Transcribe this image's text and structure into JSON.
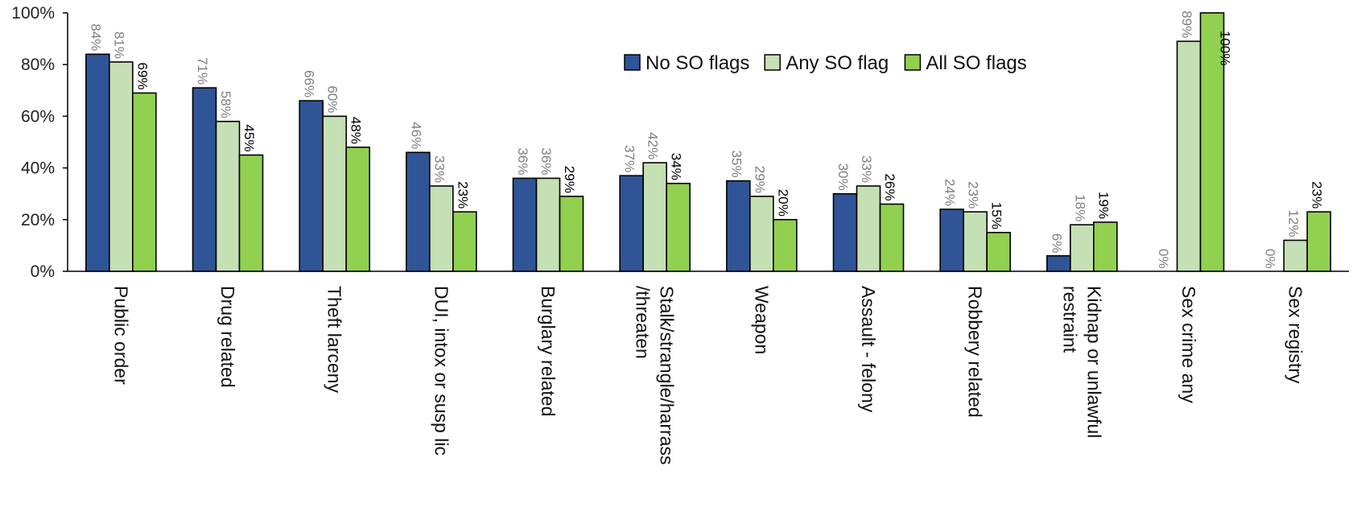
{
  "chart_data": {
    "type": "bar",
    "categories": [
      [
        "Public order"
      ],
      [
        "Drug related"
      ],
      [
        "Theft larceny"
      ],
      [
        "DUI, intox or susp lic"
      ],
      [
        "Burglary related"
      ],
      [
        "Stalk/strangle/harrass",
        "/threaten"
      ],
      [
        "Weapon"
      ],
      [
        "Assault - felony"
      ],
      [
        "Robbery related"
      ],
      [
        "Kidnap or unlawful",
        "restraint"
      ],
      [
        "Sex crime any"
      ],
      [
        "Sex registry"
      ]
    ],
    "series": [
      {
        "name": "No SO flags",
        "color": "#2F5597",
        "label_color": "#7f7f7f",
        "values": [
          84,
          71,
          66,
          46,
          36,
          37,
          35,
          30,
          24,
          6,
          0,
          0
        ],
        "labels": [
          "84%",
          "71%",
          "66%",
          "46%",
          "36%",
          "37%",
          "35%",
          "30%",
          "24%",
          "6%",
          "0%",
          "0%"
        ]
      },
      {
        "name": "Any SO flag",
        "color": "#C5E0B4",
        "label_color": "#7f7f7f",
        "values": [
          81,
          58,
          60,
          33,
          36,
          42,
          29,
          33,
          23,
          18,
          89,
          12
        ],
        "labels": [
          "81%",
          "58%",
          "60%",
          "33%",
          "36%",
          "42%",
          "29%",
          "33%",
          "23%",
          "18%",
          "89%",
          "12%"
        ]
      },
      {
        "name": "All SO flags",
        "color": "#92D050",
        "label_color": "#000000",
        "values": [
          69,
          45,
          48,
          23,
          29,
          34,
          20,
          26,
          15,
          19,
          100,
          23
        ],
        "labels": [
          "69%",
          "45%",
          "48%",
          "23%",
          "29%",
          "34%",
          "20%",
          "26%",
          "15%",
          "19%",
          "100%",
          "23%"
        ]
      }
    ],
    "yticks": [
      "0%",
      "20%",
      "40%",
      "60%",
      "80%",
      "100%"
    ],
    "ylim": [
      0,
      100
    ],
    "grid": false,
    "legend_position": "top-center"
  }
}
